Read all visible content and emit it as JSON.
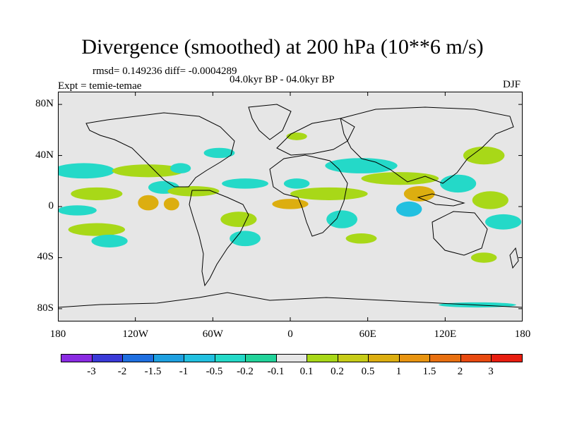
{
  "title": "Divergence (smoothed) at 200 hPa (10**6 m/s)",
  "stats_line": "rmsd= 0.149236 diff= -0.0004289",
  "period_line": "04.0kyr BP - 04.0kyr BP",
  "experiment_line": "Expt = temie-temae",
  "season": "DJF",
  "lat_ticks": [
    {
      "label": "80N",
      "lat": 80
    },
    {
      "label": "40N",
      "lat": 40
    },
    {
      "label": "0",
      "lat": 0
    },
    {
      "label": "40S",
      "lat": -40
    },
    {
      "label": "80S",
      "lat": -80
    }
  ],
  "lon_ticks": [
    {
      "label": "180",
      "lon": -180
    },
    {
      "label": "120W",
      "lon": -120
    },
    {
      "label": "60W",
      "lon": -60
    },
    {
      "label": "0",
      "lon": 0
    },
    {
      "label": "60E",
      "lon": 60
    },
    {
      "label": "120E",
      "lon": 120
    },
    {
      "label": "180",
      "lon": 180
    }
  ],
  "colorbar": {
    "colors": [
      "#8a2be2",
      "#3a3ad8",
      "#1f6fe0",
      "#1ea0e0",
      "#22c0e0",
      "#24d9c8",
      "#22d39a",
      "#e6e6e6",
      "#a8d818",
      "#c7cc18",
      "#dcae10",
      "#e89410",
      "#e87010",
      "#e84a10",
      "#e81e10"
    ],
    "labels": [
      "-3",
      "-2",
      "-1.5",
      "-1",
      "-0.5",
      "-0.2",
      "-0.1",
      "0.1",
      "0.2",
      "0.5",
      "1",
      "1.5",
      "2",
      "3"
    ]
  },
  "anomaly_blobs": [
    {
      "lon": -160,
      "lat": 28,
      "rx": 24,
      "ry": 6,
      "level": -0.2
    },
    {
      "lon": -150,
      "lat": 10,
      "rx": 20,
      "ry": 5,
      "level": 0.2
    },
    {
      "lon": -165,
      "lat": -3,
      "rx": 15,
      "ry": 4,
      "level": -0.2
    },
    {
      "lon": -150,
      "lat": -18,
      "rx": 22,
      "ry": 5,
      "level": 0.2
    },
    {
      "lon": -140,
      "lat": -27,
      "rx": 14,
      "ry": 5,
      "level": -0.2
    },
    {
      "lon": -110,
      "lat": 28,
      "rx": 28,
      "ry": 5,
      "level": 0.2
    },
    {
      "lon": -98,
      "lat": 15,
      "rx": 12,
      "ry": 5,
      "level": -0.2
    },
    {
      "lon": -110,
      "lat": 3,
      "rx": 8,
      "ry": 6,
      "level": 0.5
    },
    {
      "lon": -92,
      "lat": 2,
      "rx": 6,
      "ry": 5,
      "level": 0.5
    },
    {
      "lon": -85,
      "lat": 30,
      "rx": 8,
      "ry": 4,
      "level": -0.2
    },
    {
      "lon": -75,
      "lat": 12,
      "rx": 20,
      "ry": 4,
      "level": 0.2
    },
    {
      "lon": -55,
      "lat": 42,
      "rx": 12,
      "ry": 4,
      "level": -0.2
    },
    {
      "lon": -35,
      "lat": 18,
      "rx": 18,
      "ry": 4,
      "level": -0.2
    },
    {
      "lon": -40,
      "lat": -10,
      "rx": 14,
      "ry": 6,
      "level": 0.2
    },
    {
      "lon": -35,
      "lat": -25,
      "rx": 12,
      "ry": 6,
      "level": -0.2
    },
    {
      "lon": 0,
      "lat": 2,
      "rx": 14,
      "ry": 4,
      "level": 0.5
    },
    {
      "lon": 5,
      "lat": 18,
      "rx": 10,
      "ry": 4,
      "level": -0.2
    },
    {
      "lon": 30,
      "lat": 10,
      "rx": 30,
      "ry": 5,
      "level": 0.2
    },
    {
      "lon": 40,
      "lat": -10,
      "rx": 12,
      "ry": 7,
      "level": -0.2
    },
    {
      "lon": 55,
      "lat": 32,
      "rx": 28,
      "ry": 6,
      "level": -0.2
    },
    {
      "lon": 85,
      "lat": 22,
      "rx": 30,
      "ry": 5,
      "level": 0.2
    },
    {
      "lon": 92,
      "lat": -2,
      "rx": 10,
      "ry": 6,
      "level": -0.5
    },
    {
      "lon": 100,
      "lat": 10,
      "rx": 12,
      "ry": 6,
      "level": 0.5
    },
    {
      "lon": 130,
      "lat": 18,
      "rx": 14,
      "ry": 7,
      "level": -0.2
    },
    {
      "lon": 150,
      "lat": 40,
      "rx": 16,
      "ry": 7,
      "level": 0.2
    },
    {
      "lon": 155,
      "lat": 5,
      "rx": 14,
      "ry": 7,
      "level": 0.2
    },
    {
      "lon": 165,
      "lat": -12,
      "rx": 14,
      "ry": 6,
      "level": -0.2
    },
    {
      "lon": 150,
      "lat": -40,
      "rx": 10,
      "ry": 4,
      "level": 0.2
    },
    {
      "lon": 55,
      "lat": -25,
      "rx": 12,
      "ry": 4,
      "level": 0.2
    },
    {
      "lon": 5,
      "lat": 55,
      "rx": 8,
      "ry": 3,
      "level": 0.2
    },
    {
      "lon": 145,
      "lat": -77,
      "rx": 30,
      "ry": 2,
      "level": -0.2
    }
  ]
}
